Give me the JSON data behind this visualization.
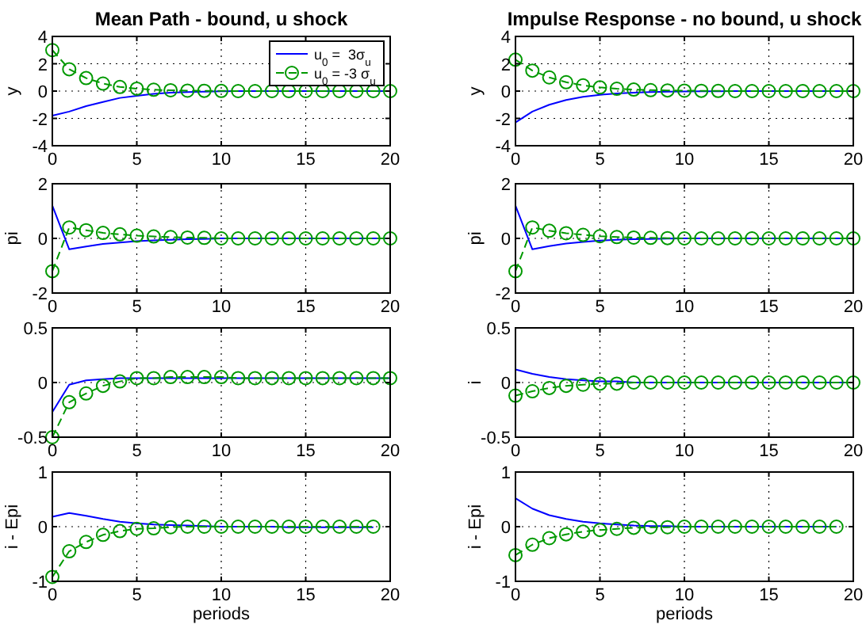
{
  "chart_data": [
    {
      "type": "line",
      "title": "Mean Path - bound, u shock",
      "ylabel": "y",
      "xlim": [
        0,
        20
      ],
      "xticks": [
        0,
        5,
        10,
        15,
        20
      ],
      "ylim": [
        -4,
        4
      ],
      "yticks": [
        -4,
        -2,
        0,
        2,
        4
      ],
      "grid": true,
      "legend": "top right",
      "x": [
        0,
        1,
        2,
        3,
        4,
        5,
        6,
        7,
        8,
        9,
        10,
        11,
        12,
        13,
        14,
        15,
        16,
        17,
        18,
        19,
        20
      ],
      "series": [
        {
          "name": "u$_{0}$ =  3σ$_{u}$",
          "color": "#0000ff",
          "marker": "none",
          "line_style": "solid",
          "values": [
            -1.8,
            -1.5,
            -1.1,
            -0.8,
            -0.5,
            -0.35,
            -0.2,
            -0.12,
            -0.07,
            -0.04,
            -0.02,
            0,
            0,
            0,
            0,
            0,
            0,
            0,
            0,
            0,
            0
          ]
        },
        {
          "name": "u$_{0}$ = -3 σ$_{u}$",
          "color": "#009900",
          "marker": "circle",
          "line_style": "dashed",
          "values": [
            3.0,
            1.6,
            0.95,
            0.55,
            0.3,
            0.18,
            0.1,
            0.06,
            0.03,
            0.02,
            0.01,
            0,
            0,
            0,
            0,
            0,
            0,
            0,
            0,
            0,
            0
          ]
        }
      ]
    },
    {
      "type": "line",
      "title": "Impulse Response - no bound, u shock",
      "ylabel": "y",
      "xlim": [
        0,
        20
      ],
      "xticks": [
        0,
        5,
        10,
        15,
        20
      ],
      "ylim": [
        -4,
        4
      ],
      "yticks": [
        -4,
        -2,
        0,
        2,
        4
      ],
      "grid": true,
      "x": [
        0,
        1,
        2,
        3,
        4,
        5,
        6,
        7,
        8,
        9,
        10,
        11,
        12,
        13,
        14,
        15,
        16,
        17,
        18,
        19,
        20
      ],
      "series": [
        {
          "color": "#0000ff",
          "marker": "none",
          "line_style": "solid",
          "values": [
            -2.3,
            -1.5,
            -1.0,
            -0.65,
            -0.42,
            -0.27,
            -0.17,
            -0.11,
            -0.07,
            -0.05,
            -0.03,
            -0.02,
            -0.01,
            0,
            0,
            0,
            0,
            0,
            0,
            0,
            0
          ]
        },
        {
          "color": "#009900",
          "marker": "circle",
          "line_style": "dashed",
          "values": [
            2.3,
            1.5,
            1.0,
            0.65,
            0.42,
            0.27,
            0.17,
            0.11,
            0.07,
            0.05,
            0.03,
            0.02,
            0.01,
            0,
            0,
            0,
            0,
            0,
            0,
            0,
            0
          ]
        }
      ]
    },
    {
      "type": "line",
      "ylabel": "pi",
      "xlim": [
        0,
        20
      ],
      "xticks": [
        0,
        5,
        10,
        15,
        20
      ],
      "ylim": [
        -2,
        2
      ],
      "yticks": [
        -2,
        0,
        2
      ],
      "grid": true,
      "x": [
        0,
        1,
        2,
        3,
        4,
        5,
        6,
        7,
        8,
        9,
        10,
        11,
        12,
        13,
        14,
        15,
        16,
        17,
        18,
        19,
        20
      ],
      "series": [
        {
          "color": "#0000ff",
          "marker": "none",
          "line_style": "solid",
          "values": [
            1.2,
            -0.4,
            -0.3,
            -0.2,
            -0.15,
            -0.1,
            -0.07,
            -0.05,
            -0.03,
            -0.02,
            0,
            0,
            0,
            0,
            0,
            0,
            0,
            0,
            0,
            0,
            0
          ]
        },
        {
          "color": "#009900",
          "marker": "circle",
          "line_style": "dashed",
          "values": [
            -1.2,
            0.4,
            0.3,
            0.2,
            0.15,
            0.1,
            0.07,
            0.05,
            0.03,
            0.02,
            0,
            0,
            0,
            0,
            0,
            0,
            0,
            0,
            0,
            0,
            0
          ]
        }
      ]
    },
    {
      "type": "line",
      "ylabel": "pi",
      "xlim": [
        0,
        20
      ],
      "xticks": [
        0,
        5,
        10,
        15,
        20
      ],
      "ylim": [
        -2,
        2
      ],
      "yticks": [
        -2,
        0,
        2
      ],
      "grid": true,
      "x": [
        0,
        1,
        2,
        3,
        4,
        5,
        6,
        7,
        8,
        9,
        10,
        11,
        12,
        13,
        14,
        15,
        16,
        17,
        18,
        19,
        20
      ],
      "series": [
        {
          "color": "#0000ff",
          "marker": "none",
          "line_style": "solid",
          "values": [
            1.2,
            -0.4,
            -0.28,
            -0.19,
            -0.13,
            -0.08,
            -0.05,
            -0.03,
            -0.02,
            -0.01,
            0,
            0,
            0,
            0,
            0,
            0,
            0,
            0,
            0,
            0,
            0
          ]
        },
        {
          "color": "#009900",
          "marker": "circle",
          "line_style": "dashed",
          "values": [
            -1.2,
            0.4,
            0.28,
            0.19,
            0.13,
            0.08,
            0.05,
            0.03,
            0.02,
            0.01,
            0,
            0,
            0,
            0,
            0,
            0,
            0,
            0,
            0,
            0,
            0
          ]
        }
      ]
    },
    {
      "type": "line",
      "xlim": [
        0,
        20
      ],
      "xticks": [
        0,
        5,
        10,
        15,
        20
      ],
      "ylim": [
        -0.5,
        0.5
      ],
      "yticks": [
        -0.5,
        0,
        0.5
      ],
      "grid": true,
      "x": [
        0,
        1,
        2,
        3,
        4,
        5,
        6,
        7,
        8,
        9,
        10,
        11,
        12,
        13,
        14,
        15,
        16,
        17,
        18,
        19,
        20
      ],
      "series": [
        {
          "color": "#0000ff",
          "marker": "none",
          "line_style": "solid",
          "values": [
            -0.27,
            -0.02,
            0.02,
            0.03,
            0.04,
            0.04,
            0.04,
            0.04,
            0.04,
            0.04,
            0.04,
            0.04,
            0.04,
            0.04,
            0.04,
            0.04,
            0.04,
            0.04,
            0.04,
            0.04,
            0.04
          ]
        },
        {
          "color": "#009900",
          "marker": "circle",
          "line_style": "dashed",
          "values": [
            -0.5,
            -0.18,
            -0.1,
            -0.03,
            0.01,
            0.04,
            0.04,
            0.05,
            0.05,
            0.05,
            0.05,
            0.04,
            0.04,
            0.04,
            0.04,
            0.04,
            0.04,
            0.04,
            0.04,
            0.04,
            0.04
          ]
        }
      ]
    },
    {
      "type": "line",
      "ylabel": "i",
      "xlim": [
        0,
        20
      ],
      "xticks": [
        0,
        5,
        10,
        15,
        20
      ],
      "ylim": [
        -0.5,
        0.5
      ],
      "yticks": [
        -0.5,
        0,
        0.5
      ],
      "grid": true,
      "x": [
        0,
        1,
        2,
        3,
        4,
        5,
        6,
        7,
        8,
        9,
        10,
        11,
        12,
        13,
        14,
        15,
        16,
        17,
        18,
        19,
        20
      ],
      "series": [
        {
          "color": "#0000ff",
          "marker": "none",
          "line_style": "solid",
          "values": [
            0.12,
            0.08,
            0.05,
            0.03,
            0.02,
            0.01,
            0.01,
            0,
            0,
            0,
            0,
            0,
            0,
            0,
            0,
            0,
            0,
            0,
            0,
            0,
            0
          ]
        },
        {
          "color": "#009900",
          "marker": "circle",
          "line_style": "dashed",
          "values": [
            -0.12,
            -0.08,
            -0.05,
            -0.03,
            -0.02,
            -0.01,
            -0.01,
            0,
            0,
            0,
            0,
            0,
            0,
            0,
            0,
            0,
            0,
            0,
            0,
            0,
            0
          ]
        }
      ]
    },
    {
      "type": "line",
      "ylabel": "i - Epi",
      "xlabel": "periods",
      "xlim": [
        0,
        20
      ],
      "xticks": [
        0,
        5,
        10,
        15,
        20
      ],
      "ylim": [
        -1,
        1
      ],
      "yticks": [
        -1,
        0,
        1
      ],
      "grid": true,
      "x": [
        0,
        1,
        2,
        3,
        4,
        5,
        6,
        7,
        8,
        9,
        10,
        11,
        12,
        13,
        14,
        15,
        16,
        17,
        18,
        19
      ],
      "series": [
        {
          "color": "#0000ff",
          "marker": "none",
          "line_style": "solid",
          "values": [
            0.18,
            0.25,
            0.2,
            0.14,
            0.09,
            0.06,
            0.04,
            0.03,
            0.02,
            0.01,
            0,
            0,
            0,
            0,
            -0.01,
            -0.01,
            -0.01,
            -0.01,
            -0.01,
            -0.01
          ]
        },
        {
          "color": "#009900",
          "marker": "circle",
          "line_style": "dashed",
          "values": [
            -0.92,
            -0.45,
            -0.28,
            -0.15,
            -0.08,
            -0.04,
            -0.03,
            -0.01,
            0,
            0,
            0,
            0,
            0,
            0,
            0,
            0,
            0,
            0,
            0,
            0
          ]
        }
      ]
    },
    {
      "type": "line",
      "ylabel": "i - Epi",
      "xlabel": "periods",
      "xlim": [
        0,
        20
      ],
      "xticks": [
        0,
        5,
        10,
        15,
        20
      ],
      "ylim": [
        -1,
        1
      ],
      "yticks": [
        -1,
        0,
        1
      ],
      "grid": true,
      "x": [
        0,
        1,
        2,
        3,
        4,
        5,
        6,
        7,
        8,
        9,
        10,
        11,
        12,
        13,
        14,
        15,
        16,
        17,
        18,
        19
      ],
      "series": [
        {
          "color": "#0000ff",
          "marker": "none",
          "line_style": "solid",
          "values": [
            0.52,
            0.33,
            0.21,
            0.14,
            0.09,
            0.06,
            0.04,
            0.02,
            0.01,
            0.01,
            0,
            0,
            0,
            0,
            0,
            0,
            0,
            0,
            0,
            0
          ]
        },
        {
          "color": "#009900",
          "marker": "circle",
          "line_style": "dashed",
          "values": [
            -0.52,
            -0.33,
            -0.21,
            -0.14,
            -0.09,
            -0.06,
            -0.04,
            -0.02,
            -0.01,
            -0.01,
            0,
            0,
            0,
            0,
            0,
            0,
            0,
            0,
            0,
            0
          ]
        }
      ]
    }
  ]
}
